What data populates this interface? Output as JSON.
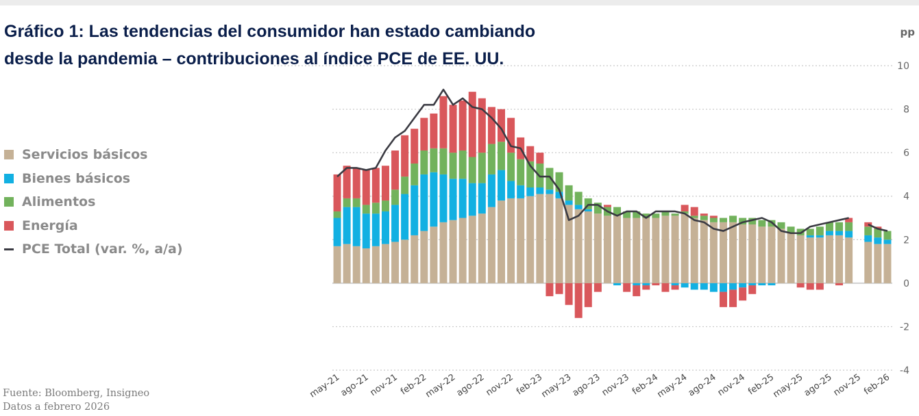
{
  "title": {
    "line1": "Gráfico 1: Las tendencias del consumidor han estado cambiando",
    "line2": "desde la pandemia – contribuciones al índice PCE de EE. UU."
  },
  "legend": [
    {
      "label": "Servicios básicos",
      "color": "#c5b196",
      "kind": "bar"
    },
    {
      "label": "Bienes básicos",
      "color": "#12b0e2",
      "kind": "bar"
    },
    {
      "label": "Alimentos",
      "color": "#72b25c",
      "kind": "bar"
    },
    {
      "label": "Energía",
      "color": "#d9575b",
      "kind": "bar"
    },
    {
      "label": "PCE Total (var. %, a/a)",
      "color": "#3a3a42",
      "kind": "line"
    }
  ],
  "source": {
    "line1": "Fuente: Bloomberg, Insigneo",
    "line2": "Datos a febrero 2026"
  },
  "chart_data": {
    "type": "bar",
    "stacked": true,
    "yunit": "pp",
    "ylim": [
      -4,
      10
    ],
    "yticks": [
      10,
      8,
      6,
      4,
      2,
      0,
      -2,
      -4
    ],
    "xtick_labels": [
      "may-21",
      "ago-21",
      "nov-21",
      "feb-22",
      "may-22",
      "ago-22",
      "nov-22",
      "feb-23",
      "may-23",
      "ago-23",
      "nov-23",
      "feb-24",
      "may-24",
      "ago-24",
      "nov-24",
      "feb-25",
      "may-25",
      "ago-25",
      "nov-25",
      "feb-26"
    ],
    "categories": [
      "may-21",
      "jun-21",
      "jul-21",
      "ago-21",
      "sep-21",
      "oct-21",
      "nov-21",
      "dic-21",
      "ene-22",
      "feb-22",
      "mar-22",
      "abr-22",
      "may-22",
      "jun-22",
      "jul-22",
      "ago-22",
      "sep-22",
      "oct-22",
      "nov-22",
      "dic-22",
      "ene-23",
      "feb-23",
      "mar-23",
      "abr-23",
      "may-23",
      "jun-23",
      "jul-23",
      "ago-23",
      "sep-23",
      "oct-23",
      "nov-23",
      "dic-23",
      "ene-24",
      "feb-24",
      "mar-24",
      "abr-24",
      "may-24",
      "jun-24",
      "jul-24",
      "ago-24",
      "sep-24",
      "oct-24",
      "nov-24",
      "dic-24",
      "ene-25",
      "feb-25",
      "mar-25",
      "abr-25",
      "may-25",
      "jun-25",
      "jul-25",
      "ago-25",
      "sep-25",
      "oct-25",
      "nov-25",
      "dic-25",
      "ene-26",
      "feb-26"
    ],
    "series": [
      {
        "name": "Servicios básicos",
        "values": [
          1.7,
          1.8,
          1.7,
          1.6,
          1.7,
          1.8,
          1.9,
          2.0,
          2.2,
          2.4,
          2.6,
          2.8,
          2.9,
          3.0,
          3.1,
          3.2,
          3.5,
          3.8,
          3.9,
          3.9,
          4.0,
          4.1,
          4.1,
          3.9,
          3.6,
          3.4,
          3.3,
          3.2,
          3.1,
          3.1,
          3.0,
          3.0,
          3.0,
          3.0,
          3.1,
          3.1,
          3.2,
          3.0,
          2.9,
          2.8,
          2.8,
          2.8,
          2.7,
          2.7,
          2.6,
          2.6,
          2.5,
          2.3,
          2.2,
          2.1,
          2.1,
          2.2,
          2.2,
          2.1,
          null,
          1.9,
          1.8,
          1.8
        ]
      },
      {
        "name": "Bienes básicos",
        "values": [
          1.3,
          1.7,
          1.8,
          1.6,
          1.5,
          1.5,
          1.7,
          2.1,
          2.3,
          2.6,
          2.5,
          2.2,
          1.9,
          1.8,
          1.5,
          1.4,
          1.5,
          1.4,
          0.8,
          0.6,
          0.4,
          0.3,
          0.2,
          0.3,
          0.2,
          0.2,
          0.1,
          0.0,
          0.0,
          -0.1,
          0.0,
          -0.1,
          -0.1,
          0.0,
          0.0,
          -0.1,
          -0.2,
          -0.3,
          -0.3,
          -0.4,
          -0.4,
          -0.3,
          -0.2,
          -0.1,
          -0.1,
          -0.1,
          0.0,
          0.0,
          0.0,
          0.1,
          0.1,
          0.2,
          0.2,
          0.3,
          null,
          0.3,
          0.3,
          0.2
        ]
      },
      {
        "name": "Alimentos",
        "values": [
          0.3,
          0.4,
          0.4,
          0.4,
          0.5,
          0.5,
          0.7,
          0.8,
          1.0,
          1.1,
          1.1,
          1.2,
          1.2,
          1.3,
          1.2,
          1.4,
          1.4,
          1.3,
          1.3,
          1.2,
          1.2,
          1.1,
          1.0,
          0.9,
          0.7,
          0.6,
          0.5,
          0.5,
          0.4,
          0.4,
          0.3,
          0.3,
          0.2,
          0.2,
          0.2,
          0.1,
          0.1,
          0.1,
          0.2,
          0.2,
          0.2,
          0.3,
          0.3,
          0.3,
          0.3,
          0.3,
          0.3,
          0.3,
          0.3,
          0.3,
          0.4,
          0.4,
          0.4,
          0.4,
          null,
          0.4,
          0.4,
          0.4
        ]
      },
      {
        "name": "Energía",
        "values": [
          1.7,
          1.5,
          1.4,
          1.6,
          1.6,
          1.6,
          1.8,
          1.9,
          1.6,
          1.5,
          1.6,
          2.4,
          2.2,
          2.3,
          3.0,
          2.5,
          1.7,
          1.5,
          1.6,
          1.0,
          0.7,
          0.5,
          -0.6,
          -0.5,
          -1.0,
          -1.6,
          -1.1,
          -0.4,
          0.1,
          0.0,
          -0.4,
          -0.5,
          -0.2,
          -0.1,
          -0.4,
          -0.2,
          0.3,
          0.4,
          0.1,
          0.1,
          -0.7,
          -0.8,
          -0.6,
          -0.4,
          0.0,
          0.0,
          0.0,
          0.0,
          -0.2,
          -0.3,
          -0.3,
          0.0,
          -0.1,
          0.2,
          null,
          0.2,
          0.1,
          0.0
        ]
      },
      {
        "name": "PCE Total (var. %, a/a)",
        "type": "line",
        "values": [
          4.9,
          5.3,
          5.3,
          5.2,
          5.3,
          6.1,
          6.7,
          7.0,
          7.6,
          8.2,
          8.2,
          8.9,
          8.2,
          8.5,
          8.1,
          8.0,
          7.6,
          7.1,
          6.3,
          6.2,
          5.4,
          4.9,
          4.9,
          4.3,
          2.9,
          3.1,
          3.6,
          3.6,
          3.3,
          3.1,
          3.3,
          3.3,
          3.0,
          3.3,
          3.3,
          3.3,
          3.2,
          2.9,
          2.8,
          2.5,
          2.4,
          2.6,
          2.8,
          2.9,
          3.0,
          2.8,
          2.4,
          2.3,
          2.3,
          2.6,
          2.7,
          2.8,
          2.9,
          3.0,
          null,
          2.7,
          2.5,
          2.4
        ]
      }
    ]
  }
}
